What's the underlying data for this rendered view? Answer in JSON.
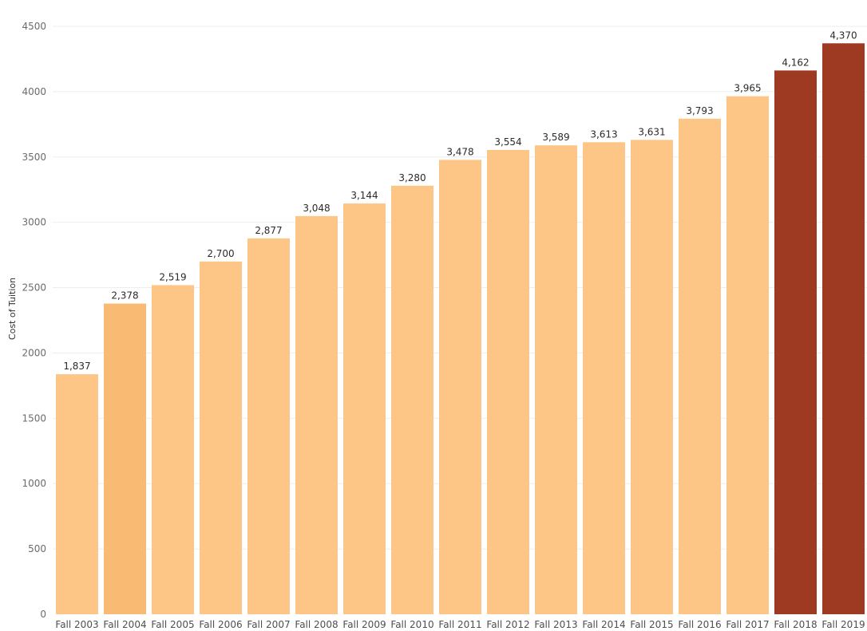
{
  "chart_data": {
    "type": "bar",
    "title": "",
    "xlabel": "",
    "ylabel": "Cost of Tuition",
    "categories": [
      "Fall 2003",
      "Fall 2004",
      "Fall 2005",
      "Fall 2006",
      "Fall 2007",
      "Fall 2008",
      "Fall 2009",
      "Fall 2010",
      "Fall 2011",
      "Fall 2012",
      "Fall 2013",
      "Fall 2014",
      "Fall 2015",
      "Fall 2016",
      "Fall 2017",
      "Fall 2018",
      "Fall 2019"
    ],
    "values": [
      1837,
      2378,
      2519,
      2700,
      2877,
      3048,
      3144,
      3280,
      3478,
      3554,
      3589,
      3613,
      3631,
      3793,
      3965,
      4162,
      4370
    ],
    "value_labels": [
      "1,837",
      "2,378",
      "2,519",
      "2,700",
      "2,877",
      "3,048",
      "3,144",
      "3,280",
      "3,478",
      "3,554",
      "3,589",
      "3,613",
      "3,631",
      "3,793",
      "3,965",
      "4,162",
      "4,370"
    ],
    "ylim": [
      0,
      4500
    ],
    "yticks": [
      0,
      500,
      1000,
      1500,
      2000,
      2500,
      3000,
      3500,
      4000,
      4500
    ],
    "ytick_labels": [
      "0",
      "500",
      "1000",
      "1500",
      "2000",
      "2500",
      "3000",
      "3500",
      "4000",
      "4500"
    ],
    "grid": true,
    "bar_colors": [
      "#fdc586",
      "#f9bb74",
      "#fdc586",
      "#fdc586",
      "#fdc586",
      "#fdc586",
      "#fdc586",
      "#fdc586",
      "#fdc586",
      "#fdc586",
      "#fdc586",
      "#fdc586",
      "#fdc586",
      "#fdc586",
      "#fdc586",
      "#9e3a22",
      "#9e3a22"
    ]
  }
}
